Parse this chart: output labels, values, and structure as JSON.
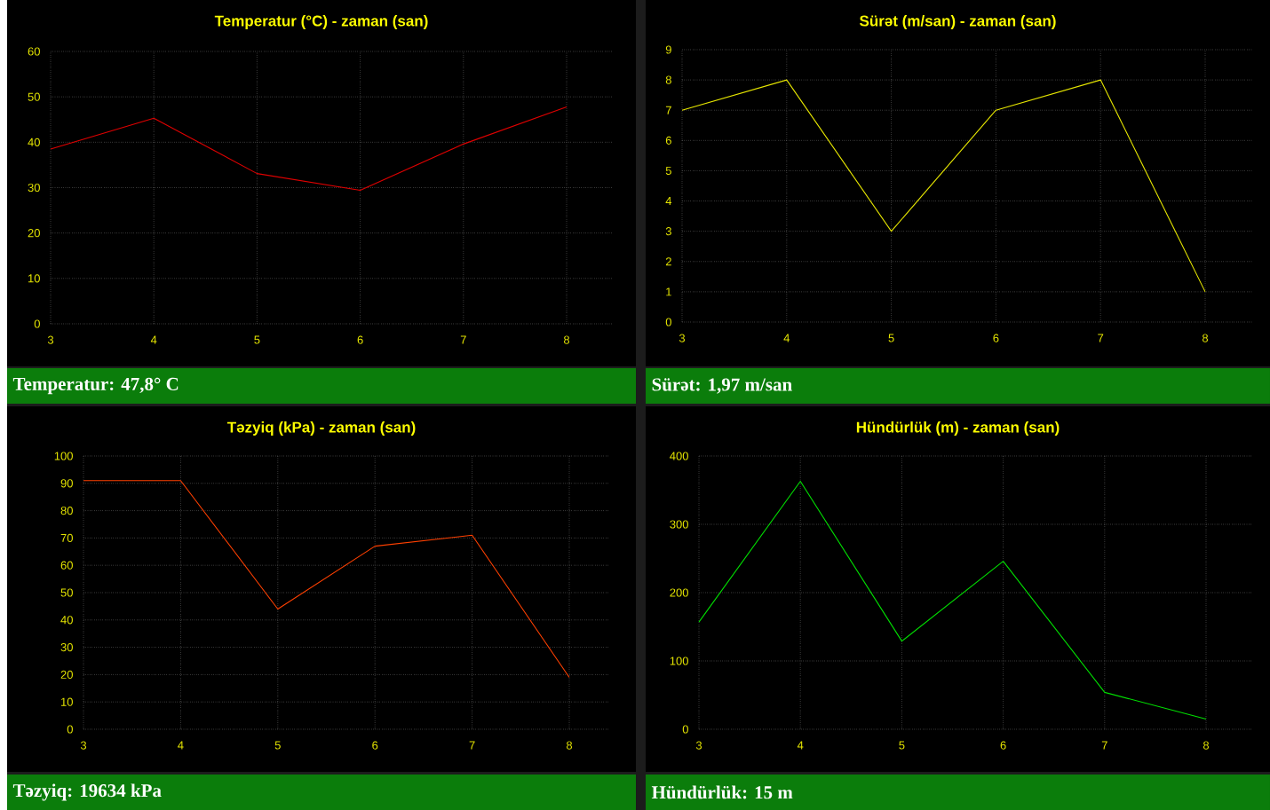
{
  "chart_data": [
    {
      "type": "line",
      "title": "Temperatur (°C) - zaman (san)",
      "x": [
        3,
        4,
        5,
        6,
        7,
        8
      ],
      "values": [
        38.5,
        45.3,
        33.1,
        29.4,
        39.6,
        47.8
      ],
      "color": "#e00000",
      "xlim": [
        3,
        8.45
      ],
      "xticks": [
        3,
        4,
        5,
        6,
        7,
        8
      ],
      "ylim": [
        0,
        60
      ],
      "yticks": [
        0,
        10,
        20,
        30,
        40,
        50,
        60
      ],
      "grid": true,
      "annotations": [
        "Temperatur: 47,8° C"
      ]
    },
    {
      "type": "line",
      "title": "Sürət (m/san) - zaman (san)",
      "x": [
        3,
        4,
        5,
        6,
        7,
        8
      ],
      "values": [
        7,
        8,
        3,
        7,
        8,
        1
      ],
      "color": "#e6e600",
      "xlim": [
        3,
        8.45
      ],
      "xticks": [
        3,
        4,
        5,
        6,
        7,
        8
      ],
      "ylim": [
        0,
        9
      ],
      "yticks": [
        0,
        1,
        2,
        3,
        4,
        5,
        6,
        7,
        8,
        9
      ],
      "grid": true,
      "annotations": [
        "Sürət: 1,97 m/san"
      ]
    },
    {
      "type": "line",
      "title": "Təzyiq (kPa) - zaman (san)",
      "x": [
        3,
        4,
        5,
        6,
        7,
        8
      ],
      "values": [
        91,
        91,
        44,
        67,
        71,
        19
      ],
      "color": "#ff4000",
      "xlim": [
        3,
        8.4
      ],
      "xticks": [
        3,
        4,
        5,
        6,
        7,
        8
      ],
      "ylim": [
        0,
        100
      ],
      "yticks": [
        0,
        10,
        20,
        30,
        40,
        50,
        60,
        70,
        80,
        90,
        100
      ],
      "grid": true,
      "annotations": [
        "Təzyiq: 19634 kPa"
      ]
    },
    {
      "type": "line",
      "title": "Hündürlük (m) - zaman (san)",
      "x": [
        3,
        4,
        5,
        6,
        7,
        8
      ],
      "values": [
        157,
        363,
        129,
        246,
        54,
        15
      ],
      "color": "#00e000",
      "xlim": [
        3,
        8.45
      ],
      "xticks": [
        3,
        4,
        5,
        6,
        7,
        8
      ],
      "ylim": [
        0,
        400
      ],
      "yticks": [
        0,
        100,
        200,
        300,
        400
      ],
      "grid": true,
      "annotations": [
        "Hündürlük: 15 m"
      ]
    }
  ]
}
